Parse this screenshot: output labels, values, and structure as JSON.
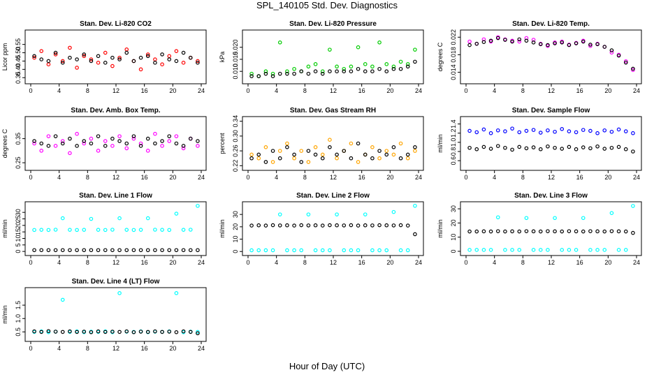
{
  "figure": {
    "title": "SPL_140105  Std. Dev. Diagnostics",
    "xlabel": "Hour of Day (UTC)"
  },
  "chart_data": [
    {
      "type": "scatter",
      "title": "Stan. Dev. Li-820 CO2",
      "xlabel": "",
      "ylabel": "Licor ppm",
      "xlim": [
        0,
        24
      ],
      "ylim": [
        0.33,
        0.62
      ],
      "xticks": [
        "0",
        "4",
        "8",
        "12",
        "16",
        "20",
        "24"
      ],
      "yticks": [
        "0.35",
        "0.40",
        "0.45",
        "0.50",
        "0.55"
      ],
      "series": [
        {
          "color": "#ff0000",
          "values": [
            0.47,
            0.51,
            0.43,
            0.49,
            0.45,
            0.53,
            0.41,
            0.48,
            0.46,
            0.44,
            0.5,
            0.42,
            0.47,
            0.52,
            0.45,
            0.4,
            0.49,
            0.46,
            0.43,
            0.48,
            0.51,
            0.44,
            0.47,
            0.45
          ]
        },
        {
          "color": "#000000",
          "values": [
            0.48,
            0.46,
            0.45,
            0.5,
            0.44,
            0.47,
            0.46,
            0.49,
            0.45,
            0.48,
            0.44,
            0.47,
            0.46,
            0.5,
            0.45,
            0.47,
            0.48,
            0.44,
            0.49,
            0.46,
            0.45,
            0.5,
            0.47,
            0.44
          ]
        }
      ]
    },
    {
      "type": "scatter",
      "title": "Stan. Dev. Li-820 Pressure",
      "xlabel": "",
      "ylabel": "kPa",
      "xlim": [
        0,
        24
      ],
      "ylim": [
        0.006,
        0.026
      ],
      "xticks": [
        "0",
        "4",
        "8",
        "12",
        "16",
        "20",
        "24"
      ],
      "yticks": [
        "0.010",
        "0.015",
        "0.020"
      ],
      "series": [
        {
          "color": "#00cc00",
          "values": [
            0.009,
            0.008,
            0.01,
            0.009,
            0.022,
            0.01,
            0.011,
            0.01,
            0.012,
            0.013,
            0.01,
            0.019,
            0.012,
            0.011,
            0.012,
            0.02,
            0.013,
            0.012,
            0.022,
            0.013,
            0.012,
            0.014,
            0.013,
            0.019
          ]
        },
        {
          "color": "#000000",
          "values": [
            0.008,
            0.008,
            0.009,
            0.008,
            0.009,
            0.009,
            0.009,
            0.01,
            0.009,
            0.01,
            0.009,
            0.01,
            0.01,
            0.01,
            0.01,
            0.011,
            0.01,
            0.01,
            0.011,
            0.01,
            0.011,
            0.011,
            0.012,
            0.014
          ]
        }
      ]
    },
    {
      "type": "scatter",
      "title": "Stan. Dev. Li-820 Temp.",
      "xlabel": "",
      "ylabel": "degrees C",
      "xlim": [
        0,
        24
      ],
      "ylim": [
        0.012,
        0.023
      ],
      "xticks": [
        "0",
        "4",
        "8",
        "12",
        "16",
        "20",
        "24"
      ],
      "yticks": [
        "0.014",
        "0.018",
        "0.022"
      ],
      "series": [
        {
          "color": "#ff00ff",
          "values": [
            0.021,
            0.0205,
            0.0215,
            0.021,
            0.022,
            0.0215,
            0.0212,
            0.021,
            0.0218,
            0.0214,
            0.0205,
            0.02,
            0.0208,
            0.021,
            0.0203,
            0.0207,
            0.0212,
            0.02,
            0.0205,
            0.0198,
            0.0185,
            0.018,
            0.0165,
            0.0145
          ]
        },
        {
          "color": "#000000",
          "values": [
            0.0202,
            0.0205,
            0.0209,
            0.0212,
            0.0218,
            0.0214,
            0.021,
            0.0215,
            0.0212,
            0.0208,
            0.0204,
            0.0202,
            0.0206,
            0.0208,
            0.0202,
            0.0206,
            0.021,
            0.0203,
            0.0204,
            0.0198,
            0.019,
            0.0178,
            0.0162,
            0.0148
          ]
        }
      ]
    },
    {
      "type": "scatter",
      "title": "Stan. Dev. Amb. Box Temp.",
      "xlabel": "",
      "ylabel": "degrees C",
      "xlim": [
        0,
        24
      ],
      "ylim": [
        0.23,
        0.43
      ],
      "xticks": [
        "0",
        "4",
        "8",
        "12",
        "16",
        "20",
        "24"
      ],
      "yticks": [
        "0.25",
        "0.35"
      ],
      "series": [
        {
          "color": "#ff00ff",
          "values": [
            0.33,
            0.3,
            0.36,
            0.32,
            0.34,
            0.29,
            0.37,
            0.33,
            0.35,
            0.3,
            0.34,
            0.32,
            0.36,
            0.31,
            0.35,
            0.33,
            0.3,
            0.37,
            0.32,
            0.34,
            0.36,
            0.31,
            0.35,
            0.32
          ]
        },
        {
          "color": "#000000",
          "values": [
            0.34,
            0.33,
            0.32,
            0.36,
            0.33,
            0.35,
            0.32,
            0.34,
            0.33,
            0.36,
            0.32,
            0.35,
            0.34,
            0.33,
            0.36,
            0.32,
            0.35,
            0.33,
            0.34,
            0.36,
            0.33,
            0.32,
            0.35,
            0.34
          ]
        }
      ]
    },
    {
      "type": "scatter",
      "title": "Stan. Dev. Gas Stream RH",
      "xlabel": "",
      "ylabel": "percent",
      "xlim": [
        0,
        24
      ],
      "ylim": [
        0.215,
        0.345
      ],
      "xticks": [
        "0",
        "4",
        "8",
        "12",
        "16",
        "20",
        "24"
      ],
      "yticks": [
        "0.22",
        "0.26",
        "0.30",
        "0.34"
      ],
      "series": [
        {
          "color": "#ffa500",
          "values": [
            0.25,
            0.24,
            0.27,
            0.23,
            0.26,
            0.28,
            0.24,
            0.26,
            0.23,
            0.27,
            0.25,
            0.29,
            0.24,
            0.26,
            0.28,
            0.23,
            0.25,
            0.27,
            0.24,
            0.26,
            0.25,
            0.28,
            0.24,
            0.26
          ]
        },
        {
          "color": "#000000",
          "values": [
            0.24,
            0.25,
            0.23,
            0.26,
            0.24,
            0.27,
            0.25,
            0.23,
            0.26,
            0.25,
            0.24,
            0.27,
            0.25,
            0.26,
            0.24,
            0.28,
            0.25,
            0.24,
            0.26,
            0.25,
            0.27,
            0.24,
            0.25,
            0.27
          ]
        }
      ]
    },
    {
      "type": "scatter",
      "title": "Stan. Dev. Sample Flow",
      "xlabel": "",
      "ylabel": "ml/min",
      "xlim": [
        0,
        24
      ],
      "ylim": [
        0.45,
        1.5
      ],
      "xticks": [
        "0",
        "4",
        "8",
        "12",
        "16",
        "20",
        "24"
      ],
      "yticks": [
        "0.6",
        "0.8",
        "1.0",
        "1.2",
        "1.4"
      ],
      "series": [
        {
          "color": "#0000ff",
          "values": [
            1.25,
            1.22,
            1.28,
            1.2,
            1.26,
            1.24,
            1.3,
            1.22,
            1.25,
            1.27,
            1.21,
            1.26,
            1.23,
            1.29,
            1.24,
            1.22,
            1.27,
            1.25,
            1.2,
            1.26,
            1.23,
            1.28,
            1.24,
            1.2
          ]
        },
        {
          "color": "#000000",
          "values": [
            0.88,
            0.85,
            0.9,
            0.86,
            0.92,
            0.88,
            0.84,
            0.9,
            0.87,
            0.89,
            0.85,
            0.91,
            0.88,
            0.86,
            0.9,
            0.85,
            0.89,
            0.87,
            0.91,
            0.86,
            0.88,
            0.9,
            0.85,
            0.8
          ]
        }
      ]
    },
    {
      "type": "scatter",
      "title": "Stan. Dev. Line 1 Flow",
      "xlabel": "",
      "ylabel": "ml/min",
      "xlim": [
        0,
        24
      ],
      "ylim": [
        -1,
        36
      ],
      "xticks": [
        "0",
        "4",
        "8",
        "12",
        "16",
        "20",
        "24"
      ],
      "yticks": [
        "0",
        "5",
        "10",
        "15",
        "20",
        "25",
        "30"
      ],
      "series": [
        {
          "color": "#00ffff",
          "values": [
            16.5,
            16.6,
            16.5,
            16.7,
            25.5,
            16.6,
            16.5,
            16.6,
            25,
            16.6,
            16.5,
            16.7,
            25.5,
            16.6,
            16.5,
            16.6,
            25.5,
            16.7,
            16.6,
            16.5,
            29,
            16.6,
            16.7,
            35
          ]
        },
        {
          "color": "#000000",
          "values": [
            1,
            1,
            1,
            1,
            1,
            1,
            1,
            1,
            1,
            1,
            1,
            1,
            1,
            1,
            1,
            1,
            1,
            1,
            1,
            1,
            1,
            1,
            1,
            1
          ]
        }
      ]
    },
    {
      "type": "scatter",
      "title": "Stan. Dev. Line 2 Flow",
      "xlabel": "",
      "ylabel": "ml/min",
      "xlim": [
        0,
        24
      ],
      "ylim": [
        -1,
        38
      ],
      "xticks": [
        "0",
        "4",
        "8",
        "12",
        "16",
        "20",
        "24"
      ],
      "yticks": [
        "0",
        "10",
        "20",
        "30"
      ],
      "series": [
        {
          "color": "#00ffff",
          "values": [
            1,
            1,
            1,
            1,
            30,
            1,
            1,
            1,
            30,
            1,
            1,
            1,
            30,
            1,
            1,
            1,
            30,
            1,
            1,
            1,
            32,
            1,
            1,
            37
          ]
        },
        {
          "color": "#000000",
          "values": [
            21,
            21.2,
            21,
            21.3,
            21.1,
            21.2,
            21,
            21.3,
            21.1,
            21.2,
            21,
            21.3,
            21.2,
            21.1,
            21.3,
            21,
            21.2,
            21.1,
            21.3,
            21.2,
            21.1,
            21.3,
            21,
            14
          ]
        }
      ]
    },
    {
      "type": "scatter",
      "title": "Stan. Dev. Line 3 Flow",
      "xlabel": "",
      "ylabel": "ml/min",
      "xlim": [
        0,
        24
      ],
      "ylim": [
        -1,
        33
      ],
      "xticks": [
        "0",
        "4",
        "8",
        "12",
        "16",
        "20",
        "24"
      ],
      "yticks": [
        "0",
        "10",
        "20",
        "30"
      ],
      "series": [
        {
          "color": "#00ffff",
          "values": [
            1,
            1,
            1,
            1,
            24,
            1,
            1,
            1,
            23.5,
            1,
            1,
            1,
            23.5,
            1,
            1,
            1,
            23.5,
            1,
            1,
            1,
            27,
            1,
            1,
            32
          ]
        },
        {
          "color": "#000000",
          "values": [
            14,
            14,
            14.1,
            14,
            14.2,
            14,
            14.1,
            14,
            14.2,
            14.1,
            14,
            14.2,
            14.1,
            14,
            14.2,
            14.1,
            14,
            14.2,
            14.1,
            14,
            14.2,
            14.1,
            14,
            13
          ]
        }
      ]
    },
    {
      "type": "scatter",
      "title": "Stan. Dev. Line 4 (LT) Flow",
      "xlabel": "",
      "ylabel": "ml/min",
      "xlim": [
        0,
        24
      ],
      "ylim": [
        0.25,
        2.05
      ],
      "xticks": [
        "0",
        "4",
        "8",
        "12",
        "16",
        "20",
        "24"
      ],
      "yticks": [
        "0.5",
        "1.0",
        "1.5"
      ],
      "series": [
        {
          "color": "#00ffff",
          "values": [
            0.5,
            0.52,
            0.49,
            0.51,
            1.7,
            0.5,
            0.52,
            0.49,
            0.51,
            0.5,
            0.52,
            0.49,
            1.95,
            0.51,
            0.5,
            0.52,
            0.49,
            0.51,
            0.5,
            0.52,
            1.95,
            0.49,
            0.51,
            0.5
          ]
        },
        {
          "color": "#000000",
          "values": [
            0.52,
            0.5,
            0.53,
            0.51,
            0.5,
            0.52,
            0.5,
            0.51,
            0.49,
            0.52,
            0.5,
            0.51,
            0.5,
            0.52,
            0.49,
            0.51,
            0.5,
            0.52,
            0.5,
            0.51,
            0.49,
            0.52,
            0.5,
            0.45
          ]
        }
      ]
    }
  ]
}
